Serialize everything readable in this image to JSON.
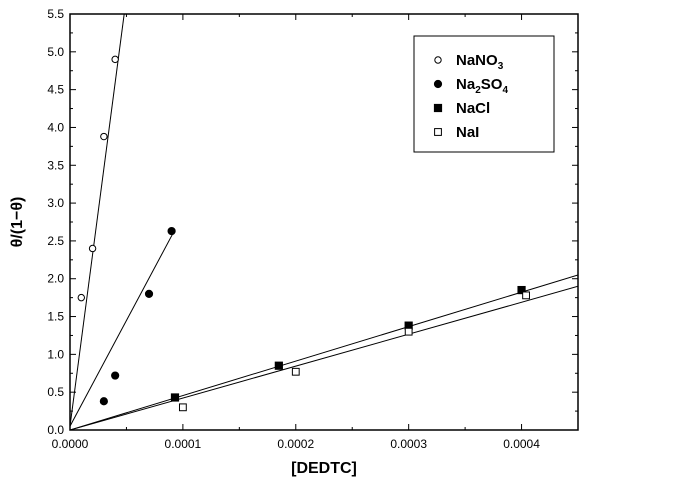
{
  "chart_data": {
    "type": "scatter",
    "xlabel": "[DEDTC]",
    "ylabel": "θ/(1−θ)",
    "xlim": [
      0,
      0.00045
    ],
    "ylim": [
      0,
      5.5
    ],
    "x_ticks": [
      "0.0000",
      "0.0001",
      "0.0002",
      "0.0003",
      "0.0004"
    ],
    "x_tick_values": [
      0,
      0.0001,
      0.0002,
      0.0003,
      0.0004
    ],
    "y_ticks": [
      "0.0",
      "0.5",
      "1.0",
      "1.5",
      "2.0",
      "2.5",
      "3.0",
      "3.5",
      "4.0",
      "4.5",
      "5.0",
      "5.5"
    ],
    "y_tick_values": [
      0,
      0.5,
      1.0,
      1.5,
      2.0,
      2.5,
      3.0,
      3.5,
      4.0,
      4.5,
      5.0,
      5.5
    ],
    "grid": false,
    "legend_position": "top-right",
    "series": [
      {
        "name": "NaNO3",
        "label_main": "NaNO",
        "label_sub": "3",
        "label_tail": "",
        "marker": "open-circle",
        "points": [
          [
            1e-05,
            1.75
          ],
          [
            2e-05,
            2.4
          ],
          [
            3e-05,
            3.88
          ],
          [
            4e-05,
            4.9
          ]
        ],
        "fit_line": [
          [
            0,
            0.05
          ],
          [
            4.8e-05,
            5.5
          ]
        ]
      },
      {
        "name": "Na2SO4",
        "label_main": "Na",
        "label_sub": "2",
        "label_tail": "SO",
        "label_sub2": "4",
        "marker": "filled-circle",
        "points": [
          [
            3e-05,
            0.38
          ],
          [
            4e-05,
            0.72
          ],
          [
            7e-05,
            1.8
          ],
          [
            9e-05,
            2.63
          ]
        ],
        "fit_line": [
          [
            0,
            0.05
          ],
          [
            9.3e-05,
            2.65
          ]
        ]
      },
      {
        "name": "NaCl",
        "label_main": "NaCl",
        "label_sub": "",
        "label_tail": "",
        "marker": "filled-square",
        "points": [
          [
            9.3e-05,
            0.43
          ],
          [
            0.000185,
            0.85
          ],
          [
            0.0003,
            1.38
          ],
          [
            0.0004,
            1.85
          ]
        ],
        "fit_line": [
          [
            0,
            0
          ],
          [
            0.00045,
            2.05
          ]
        ]
      },
      {
        "name": "NaI",
        "label_main": "NaI",
        "label_sub": "",
        "label_tail": "",
        "marker": "open-square",
        "points": [
          [
            0.0001,
            0.3
          ],
          [
            0.0002,
            0.77
          ],
          [
            0.0003,
            1.3
          ],
          [
            0.000404,
            1.78
          ]
        ],
        "fit_line": [
          [
            0,
            0
          ],
          [
            0.00045,
            1.9
          ]
        ]
      }
    ]
  }
}
